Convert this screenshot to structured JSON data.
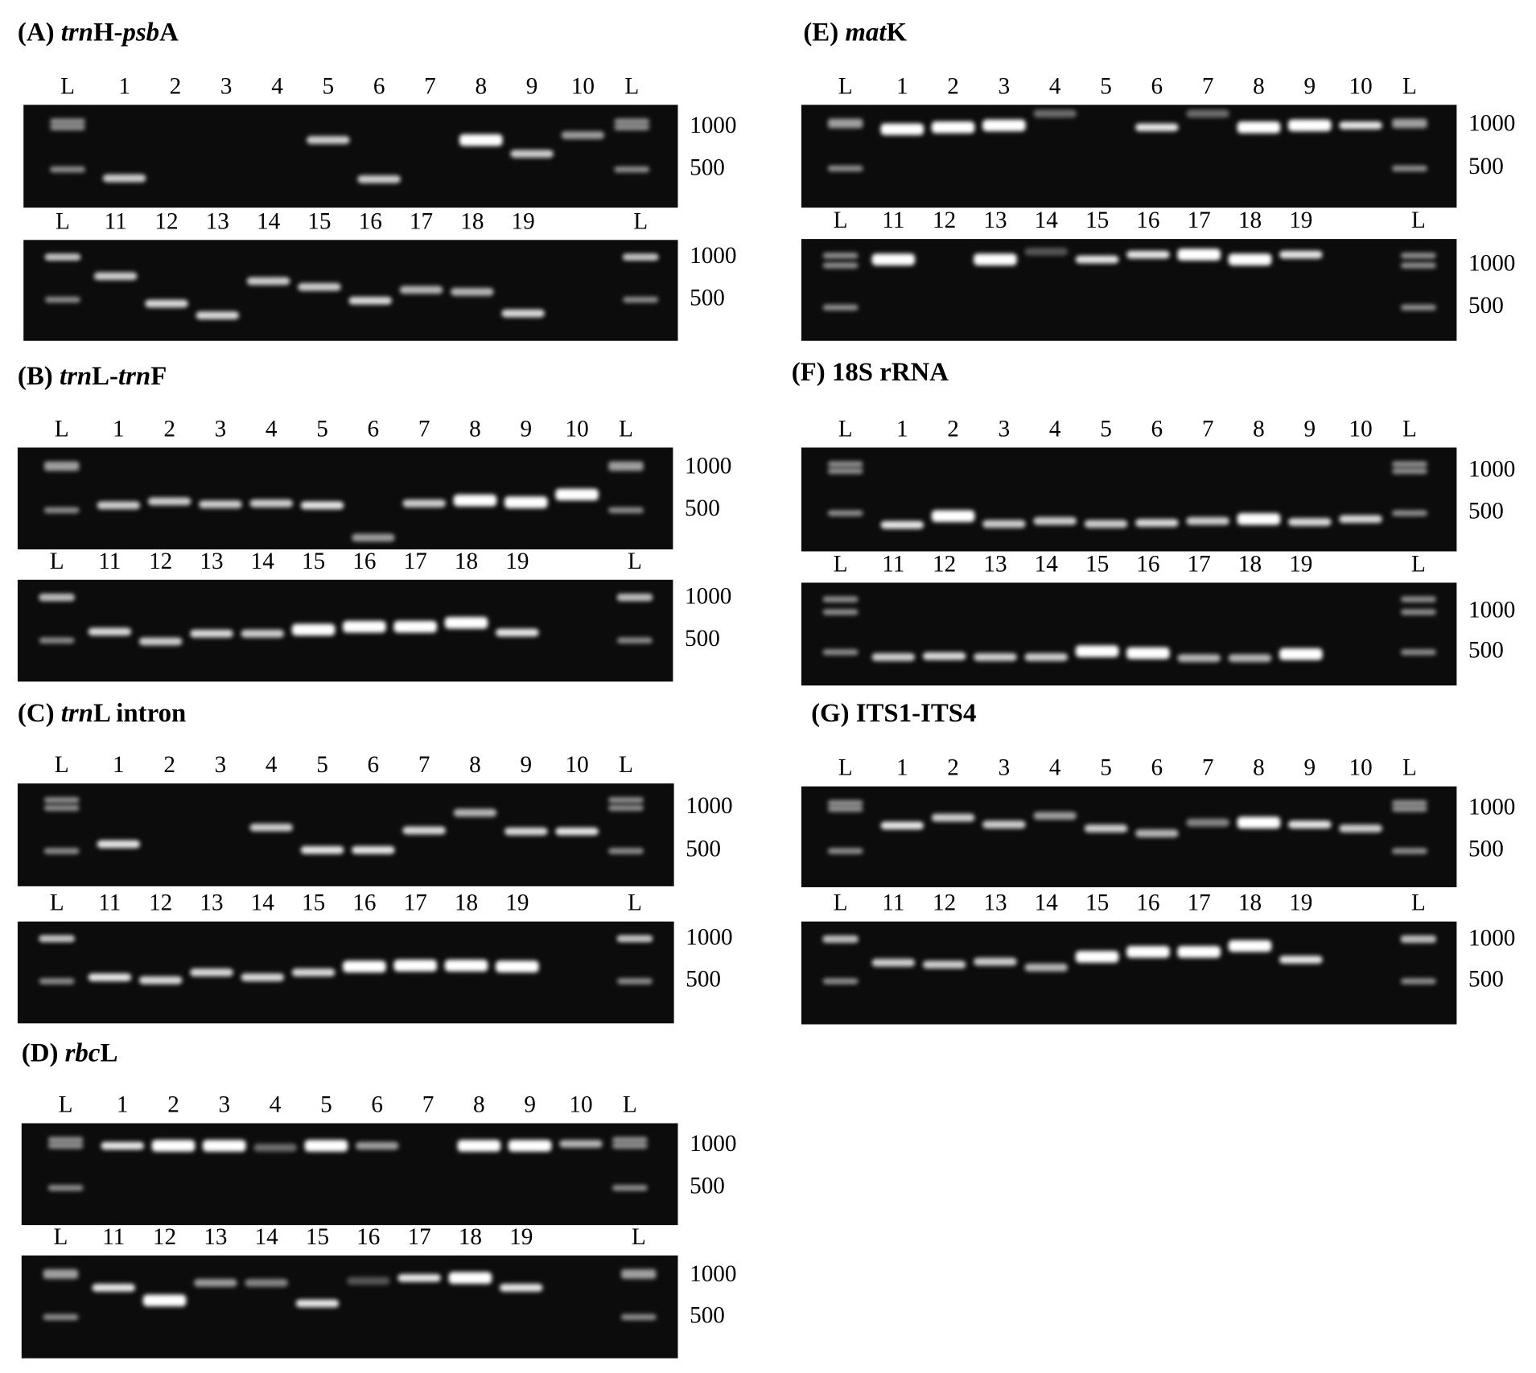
{
  "panels": [
    {
      "title": [
        {
          "text": "(A) "
        },
        {
          "text": "trn",
          "italic": true
        },
        {
          "text": "H-"
        },
        {
          "text": "psb",
          "italic": true
        },
        {
          "text": "A"
        }
      ],
      "gels": [
        {
          "lanes": [
            "L",
            "1",
            "2",
            "3",
            "4",
            "5",
            "6",
            "7",
            "8",
            "9",
            "10",
            "L"
          ],
          "sizes": [
            1000,
            500
          ]
        },
        {
          "lanes": [
            "L",
            "11",
            "12",
            "13",
            "14",
            "15",
            "16",
            "17",
            "18",
            "19",
            null,
            "L"
          ],
          "sizes": [
            1000,
            500
          ]
        }
      ]
    },
    {
      "title": [
        {
          "text": "(B) "
        },
        {
          "text": "trn",
          "italic": true
        },
        {
          "text": "L-"
        },
        {
          "text": "trn",
          "italic": true
        },
        {
          "text": "F"
        }
      ],
      "gels": [
        {
          "lanes": [
            "L",
            "1",
            "2",
            "3",
            "4",
            "5",
            "6",
            "7",
            "8",
            "9",
            "10",
            "L"
          ],
          "sizes": [
            1000,
            500
          ]
        },
        {
          "lanes": [
            "L",
            "11",
            "12",
            "13",
            "14",
            "15",
            "16",
            "17",
            "18",
            "19",
            null,
            "L"
          ],
          "sizes": [
            1000,
            500
          ]
        }
      ]
    },
    {
      "title": [
        {
          "text": "(C) "
        },
        {
          "text": "trn",
          "italic": true
        },
        {
          "text": "L intron"
        }
      ],
      "gels": [
        {
          "lanes": [
            "L",
            "1",
            "2",
            "3",
            "4",
            "5",
            "6",
            "7",
            "8",
            "9",
            "10",
            "L"
          ],
          "sizes": [
            1000,
            500
          ]
        },
        {
          "lanes": [
            "L",
            "11",
            "12",
            "13",
            "14",
            "15",
            "16",
            "17",
            "18",
            "19",
            null,
            "L"
          ],
          "sizes": [
            1000,
            500
          ]
        }
      ]
    },
    {
      "title": [
        {
          "text": "(D) "
        },
        {
          "text": "rbc",
          "italic": true
        },
        {
          "text": "L"
        }
      ],
      "gels": [
        {
          "lanes": [
            "L",
            "1",
            "2",
            "3",
            "4",
            "5",
            "6",
            "7",
            "8",
            "9",
            "10",
            "L"
          ],
          "sizes": [
            1000,
            500
          ]
        },
        {
          "lanes": [
            "L",
            "11",
            "12",
            "13",
            "14",
            "15",
            "16",
            "17",
            "18",
            "19",
            null,
            "L"
          ],
          "sizes": [
            1000,
            500
          ]
        }
      ]
    },
    {
      "title": [
        {
          "text": "(E) "
        },
        {
          "text": "mat",
          "italic": true
        },
        {
          "text": "K"
        }
      ],
      "gels": [
        {
          "lanes": [
            "L",
            "1",
            "2",
            "3",
            "4",
            "5",
            "6",
            "7",
            "8",
            "9",
            "10",
            "L"
          ],
          "sizes": [
            1000,
            500
          ]
        },
        {
          "lanes": [
            "L",
            "11",
            "12",
            "13",
            "14",
            "15",
            "16",
            "17",
            "18",
            "19",
            null,
            "L"
          ],
          "sizes": [
            1000,
            500
          ]
        }
      ]
    },
    {
      "title": [
        {
          "text": "(F) 18S rRNA"
        }
      ],
      "gels": [
        {
          "lanes": [
            "L",
            "1",
            "2",
            "3",
            "4",
            "5",
            "6",
            "7",
            "8",
            "9",
            "10",
            "L"
          ],
          "sizes": [
            1000,
            500
          ]
        },
        {
          "lanes": [
            "L",
            "11",
            "12",
            "13",
            "14",
            "15",
            "16",
            "17",
            "18",
            "19",
            null,
            "L"
          ],
          "sizes": [
            1000,
            500
          ]
        }
      ]
    },
    {
      "title": [
        {
          "text": "(G) ITS1-ITS4"
        }
      ],
      "gels": [
        {
          "lanes": [
            "L",
            "1",
            "2",
            "3",
            "4",
            "5",
            "6",
            "7",
            "8",
            "9",
            "10",
            "L"
          ],
          "sizes": [
            1000,
            500
          ]
        },
        {
          "lanes": [
            "L",
            "11",
            "12",
            "13",
            "14",
            "15",
            "16",
            "17",
            "18",
            "19",
            null,
            "L"
          ],
          "sizes": [
            1000,
            500
          ]
        }
      ]
    }
  ]
}
